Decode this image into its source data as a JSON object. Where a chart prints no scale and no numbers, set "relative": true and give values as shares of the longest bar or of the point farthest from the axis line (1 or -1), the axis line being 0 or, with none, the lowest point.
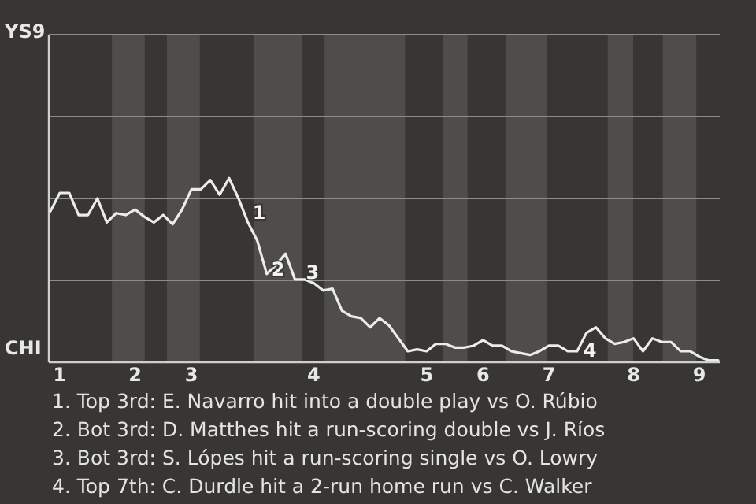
{
  "chart_data": {
    "type": "line",
    "relative": true,
    "categories": [
      null,
      "1",
      null,
      null,
      null,
      null,
      null,
      null,
      null,
      "2",
      null,
      null,
      null,
      null,
      null,
      "3",
      null,
      null,
      null,
      null,
      null,
      null,
      null,
      null,
      null,
      null,
      null,
      null,
      "4",
      null,
      null,
      null,
      null,
      null,
      null,
      null,
      null,
      null,
      null,
      null,
      "5",
      null,
      null,
      null,
      null,
      null,
      "6",
      null,
      null,
      null,
      null,
      null,
      null,
      "7",
      null,
      null,
      null,
      null,
      null,
      null,
      null,
      null,
      "8",
      null,
      null,
      null,
      null,
      null,
      null,
      "9",
      null,
      null
    ],
    "ref_lines": [
      {
        "axis": "y",
        "value": 0.445,
        "color": "#8c8b88"
      },
      {
        "axis": "y",
        "value": 0.89,
        "color": "#8c8b88"
      },
      {
        "axis": "y",
        "value": 1.335,
        "color": "#8c8b88"
      }
    ],
    "series": [
      {
        "color": "#ececec",
        "values": [
          0.82,
          0.92,
          0.92,
          0.8,
          0.8,
          0.89,
          0.76,
          0.81,
          0.8,
          0.83,
          0.79,
          0.76,
          0.8,
          0.75,
          0.83,
          0.94,
          0.94,
          0.99,
          0.91,
          1,
          0.89,
          0.76,
          0.66,
          0.48,
          0.53,
          0.59,
          0.45,
          0.45,
          0.43,
          0.39,
          0.4,
          0.28,
          0.25,
          0.24,
          0.19,
          0.24,
          0.2,
          0.13,
          0.06,
          0.07,
          0.06,
          0.1,
          0.1,
          0.08,
          0.08,
          0.09,
          0.12,
          0.09,
          0.09,
          0.06,
          0.05,
          0.04,
          0.06,
          0.09,
          0.09,
          0.06,
          0.06,
          0.16,
          0.19,
          0.13,
          0.1,
          0.11,
          0.13,
          0.06,
          0.13,
          0.11,
          0.11,
          0.06,
          0.06,
          0.03,
          0.01,
          0.01
        ]
      }
    ],
    "marker": "none",
    "line_style": "solid",
    "annotations": [
      {
        "text": "1",
        "y": 0.66
      },
      {
        "text": "2",
        "y": 0.48
      },
      {
        "text": "3",
        "y": 0.43
      },
      {
        "text": "4",
        "y": 0.16
      },
      "YS9",
      "CHI",
      "1. Top 3rd: E. Navarro hit into a double play vs O. Rúbio",
      "2. Bot 3rd: D. Matthes hit a run-scoring double vs J. Ríos",
      "3. Bot 3rd: S. Lópes hit a run-scoring single vs O. Lowry",
      "4. Top 7th: C. Durdle hit a 2-run home run vs C. Walker"
    ]
  }
}
